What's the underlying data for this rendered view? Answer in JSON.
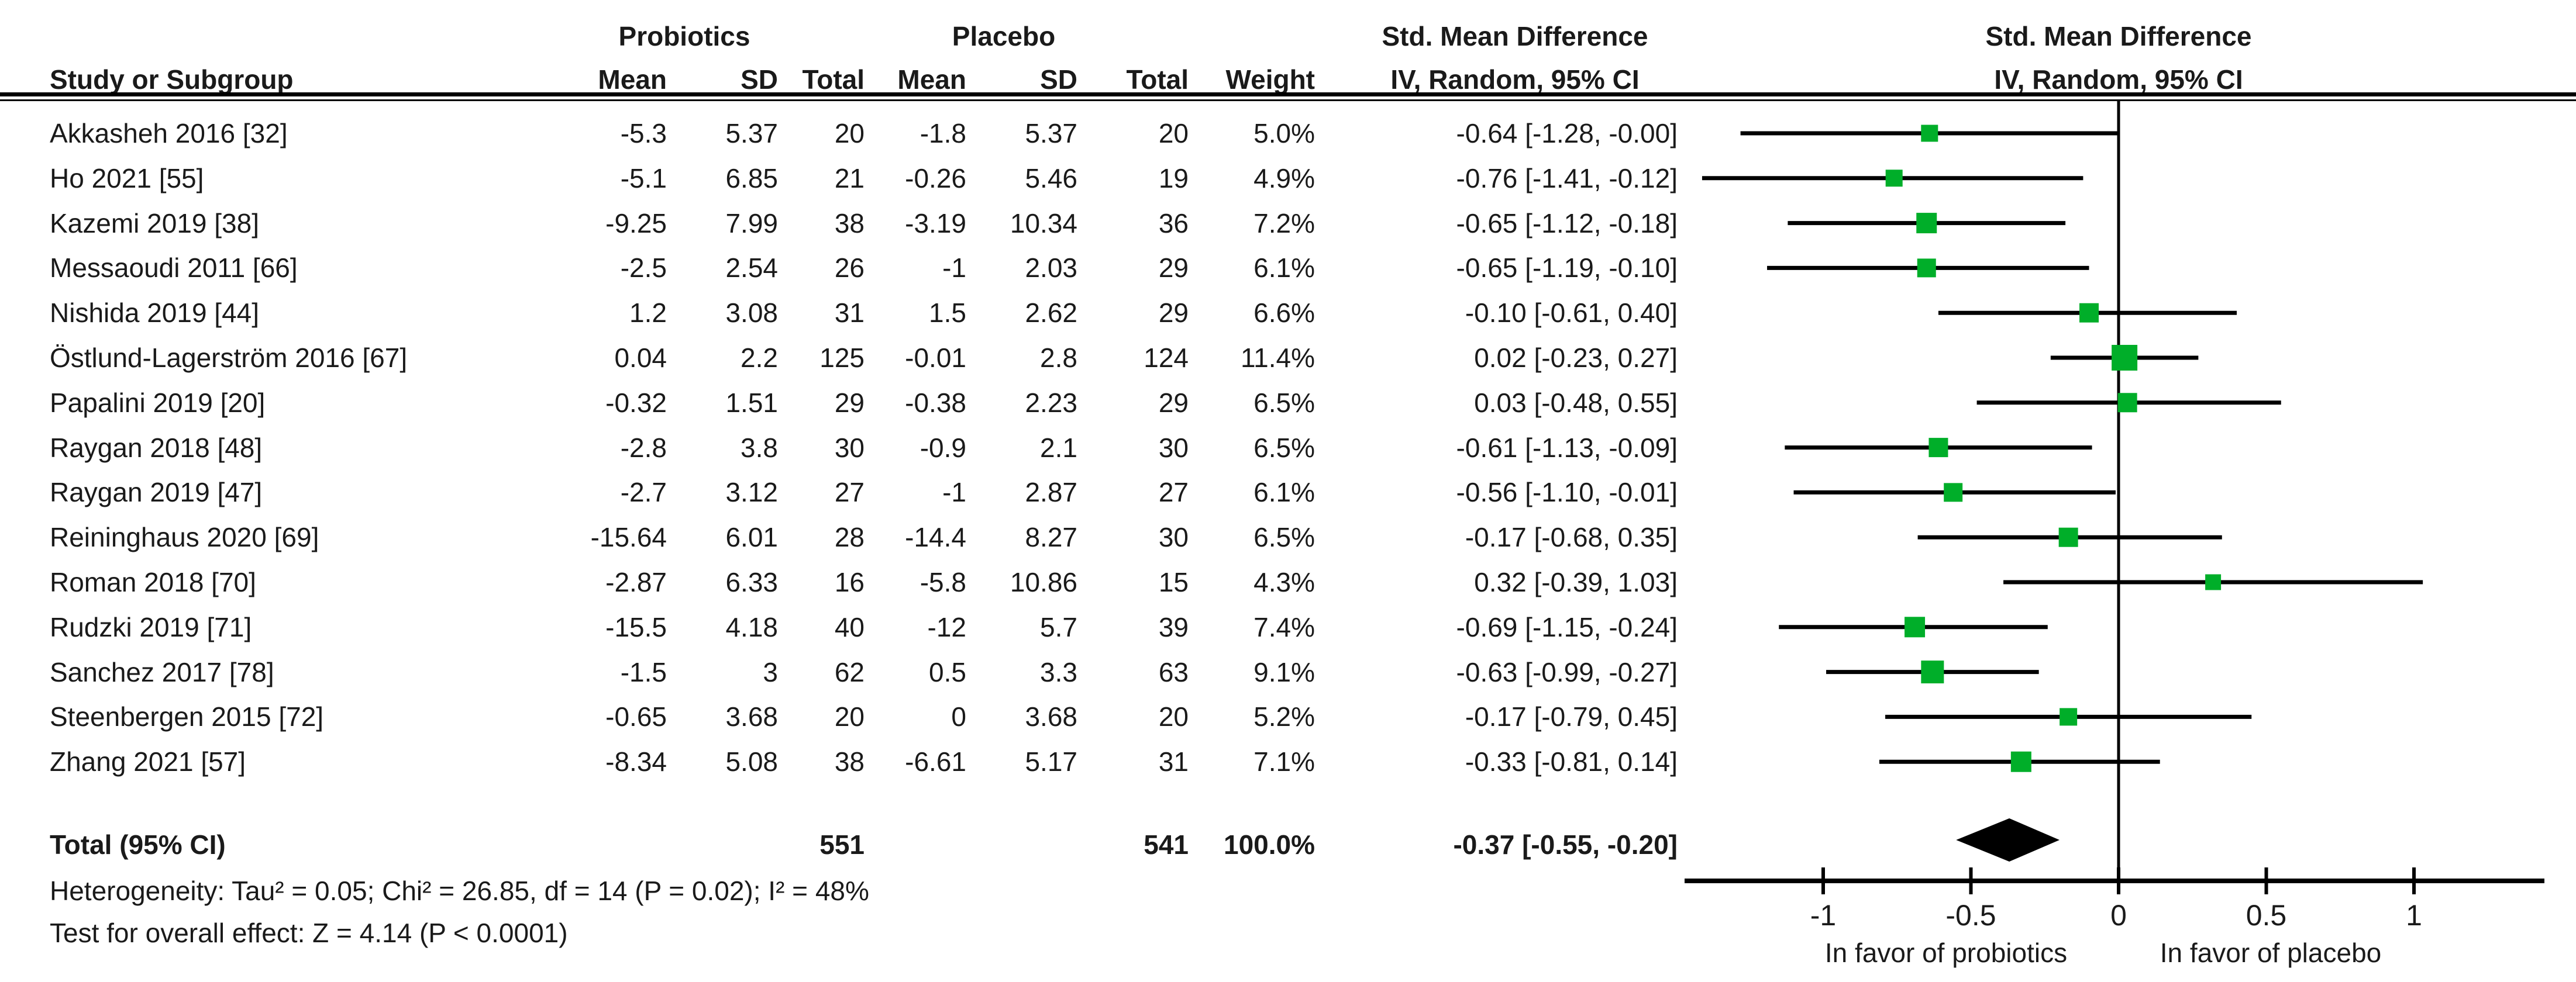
{
  "header": {
    "group_probiotics": "Probiotics",
    "group_placebo": "Placebo",
    "smd_text_col": "Std. Mean Difference",
    "smd_plot_col": "Std. Mean Difference",
    "iv_text_col": "IV, Random, 95% CI",
    "iv_plot_col": "IV, Random, 95% CI",
    "study_col": "Study or Subgroup",
    "mean_col": "Mean",
    "sd_col": "SD",
    "total_col": "Total",
    "weight_col": "Weight"
  },
  "studies": [
    {
      "name": "Akkasheh 2016 [32]",
      "p_mean": "-5.3",
      "p_sd": "5.37",
      "p_total": "20",
      "c_mean": "-1.8",
      "c_sd": "5.37",
      "c_total": "20",
      "weight": "5.0%",
      "ci_text": "-0.64 [-1.28, -0.00]",
      "est": -0.64,
      "lo": -1.28,
      "hi": 0.0,
      "weight_val": 5.0
    },
    {
      "name": "Ho 2021 [55]",
      "p_mean": "-5.1",
      "p_sd": "6.85",
      "p_total": "21",
      "c_mean": "-0.26",
      "c_sd": "5.46",
      "c_total": "19",
      "weight": "4.9%",
      "ci_text": "-0.76 [-1.41, -0.12]",
      "est": -0.76,
      "lo": -1.41,
      "hi": -0.12,
      "weight_val": 4.9
    },
    {
      "name": "Kazemi 2019 [38]",
      "p_mean": "-9.25",
      "p_sd": "7.99",
      "p_total": "38",
      "c_mean": "-3.19",
      "c_sd": "10.34",
      "c_total": "36",
      "weight": "7.2%",
      "ci_text": "-0.65 [-1.12, -0.18]",
      "est": -0.65,
      "lo": -1.12,
      "hi": -0.18,
      "weight_val": 7.2
    },
    {
      "name": "Messaoudi 2011 [66]",
      "p_mean": "-2.5",
      "p_sd": "2.54",
      "p_total": "26",
      "c_mean": "-1",
      "c_sd": "2.03",
      "c_total": "29",
      "weight": "6.1%",
      "ci_text": "-0.65 [-1.19, -0.10]",
      "est": -0.65,
      "lo": -1.19,
      "hi": -0.1,
      "weight_val": 6.1
    },
    {
      "name": "Nishida 2019 [44]",
      "p_mean": "1.2",
      "p_sd": "3.08",
      "p_total": "31",
      "c_mean": "1.5",
      "c_sd": "2.62",
      "c_total": "29",
      "weight": "6.6%",
      "ci_text": "-0.10 [-0.61, 0.40]",
      "est": -0.1,
      "lo": -0.61,
      "hi": 0.4,
      "weight_val": 6.6
    },
    {
      "name": "Östlund-Lagerström 2016 [67]",
      "p_mean": "0.04",
      "p_sd": "2.2",
      "p_total": "125",
      "c_mean": "-0.01",
      "c_sd": "2.8",
      "c_total": "124",
      "weight": "11.4%",
      "ci_text": "0.02 [-0.23, 0.27]",
      "est": 0.02,
      "lo": -0.23,
      "hi": 0.27,
      "weight_val": 11.4
    },
    {
      "name": "Papalini 2019 [20]",
      "p_mean": "-0.32",
      "p_sd": "1.51",
      "p_total": "29",
      "c_mean": "-0.38",
      "c_sd": "2.23",
      "c_total": "29",
      "weight": "6.5%",
      "ci_text": "0.03 [-0.48, 0.55]",
      "est": 0.03,
      "lo": -0.48,
      "hi": 0.55,
      "weight_val": 6.5
    },
    {
      "name": "Raygan 2018 [48]",
      "p_mean": "-2.8",
      "p_sd": "3.8",
      "p_total": "30",
      "c_mean": "-0.9",
      "c_sd": "2.1",
      "c_total": "30",
      "weight": "6.5%",
      "ci_text": "-0.61 [-1.13, -0.09]",
      "est": -0.61,
      "lo": -1.13,
      "hi": -0.09,
      "weight_val": 6.5
    },
    {
      "name": "Raygan 2019 [47]",
      "p_mean": "-2.7",
      "p_sd": "3.12",
      "p_total": "27",
      "c_mean": "-1",
      "c_sd": "2.87",
      "c_total": "27",
      "weight": "6.1%",
      "ci_text": "-0.56 [-1.10, -0.01]",
      "est": -0.56,
      "lo": -1.1,
      "hi": -0.01,
      "weight_val": 6.1
    },
    {
      "name": "Reininghaus 2020 [69]",
      "p_mean": "-15.64",
      "p_sd": "6.01",
      "p_total": "28",
      "c_mean": "-14.4",
      "c_sd": "8.27",
      "c_total": "30",
      "weight": "6.5%",
      "ci_text": "-0.17 [-0.68, 0.35]",
      "est": -0.17,
      "lo": -0.68,
      "hi": 0.35,
      "weight_val": 6.5
    },
    {
      "name": "Roman 2018 [70]",
      "p_mean": "-2.87",
      "p_sd": "6.33",
      "p_total": "16",
      "c_mean": "-5.8",
      "c_sd": "10.86",
      "c_total": "15",
      "weight": "4.3%",
      "ci_text": "0.32 [-0.39, 1.03]",
      "est": 0.32,
      "lo": -0.39,
      "hi": 1.03,
      "weight_val": 4.3
    },
    {
      "name": "Rudzki 2019 [71]",
      "p_mean": "-15.5",
      "p_sd": "4.18",
      "p_total": "40",
      "c_mean": "-12",
      "c_sd": "5.7",
      "c_total": "39",
      "weight": "7.4%",
      "ci_text": "-0.69 [-1.15, -0.24]",
      "est": -0.69,
      "lo": -1.15,
      "hi": -0.24,
      "weight_val": 7.4
    },
    {
      "name": "Sanchez 2017 [78]",
      "p_mean": "-1.5",
      "p_sd": "3",
      "p_total": "62",
      "c_mean": "0.5",
      "c_sd": "3.3",
      "c_total": "63",
      "weight": "9.1%",
      "ci_text": "-0.63 [-0.99, -0.27]",
      "est": -0.63,
      "lo": -0.99,
      "hi": -0.27,
      "weight_val": 9.1
    },
    {
      "name": "Steenbergen 2015 [72]",
      "p_mean": "-0.65",
      "p_sd": "3.68",
      "p_total": "20",
      "c_mean": "0",
      "c_sd": "3.68",
      "c_total": "20",
      "weight": "5.2%",
      "ci_text": "-0.17 [-0.79, 0.45]",
      "est": -0.17,
      "lo": -0.79,
      "hi": 0.45,
      "weight_val": 5.2
    },
    {
      "name": "Zhang 2021 [57]",
      "p_mean": "-8.34",
      "p_sd": "5.08",
      "p_total": "38",
      "c_mean": "-6.61",
      "c_sd": "5.17",
      "c_total": "31",
      "weight": "7.1%",
      "ci_text": "-0.33 [-0.81, 0.14]",
      "est": -0.33,
      "lo": -0.81,
      "hi": 0.14,
      "weight_val": 7.1
    }
  ],
  "total_row": {
    "label": "Total (95% CI)",
    "p_total": "551",
    "c_total": "541",
    "weight": "100.0%",
    "ci_text": "-0.37 [-0.55, -0.20]",
    "est": -0.37,
    "lo": -0.55,
    "hi": -0.2
  },
  "footer": {
    "heterogeneity": "Heterogeneity: Tau² = 0.05; Chi² = 26.85, df = 14 (P = 0.02); I² = 48%",
    "overall_effect": "Test for overall effect: Z = 4.14 (P < 0.0001)"
  },
  "axis": {
    "ticks": [
      -1,
      -0.5,
      0,
      0.5,
      1
    ],
    "tick_labels": [
      "-1",
      "-0.5",
      "0",
      "0.5",
      "1"
    ],
    "left_label": "In favor of probiotics",
    "right_label": "In favor of placebo"
  },
  "colors": {
    "marker_green": "#00ae29",
    "line_black": "#000000",
    "text": "#1a1a1a"
  },
  "chart_data": {
    "type": "scatter",
    "subtype": "forest-plot",
    "title": "Std. Mean Difference, IV, Random, 95% CI",
    "xlabel_left": "In favor of probiotics",
    "xlabel_right": "In favor of placebo",
    "xlim": [
      -1.47,
      1.45
    ],
    "x_ticks": [
      -1,
      -0.5,
      0,
      0.5,
      1
    ],
    "grid": false,
    "studies": [
      "Akkasheh 2016 [32]",
      "Ho 2021 [55]",
      "Kazemi 2019 [38]",
      "Messaoudi 2011 [66]",
      "Nishida 2019 [44]",
      "Östlund-Lagerström 2016 [67]",
      "Papalini 2019 [20]",
      "Raygan 2018 [48]",
      "Raygan 2019 [47]",
      "Reininghaus 2020 [69]",
      "Roman 2018 [70]",
      "Rudzki 2019 [71]",
      "Sanchez 2017 [78]",
      "Steenbergen 2015 [72]",
      "Zhang 2021 [57]"
    ],
    "estimates": [
      -0.64,
      -0.76,
      -0.65,
      -0.65,
      -0.1,
      0.02,
      0.03,
      -0.61,
      -0.56,
      -0.17,
      0.32,
      -0.69,
      -0.63,
      -0.17,
      -0.33
    ],
    "ci_low": [
      -1.28,
      -1.41,
      -1.12,
      -1.19,
      -0.61,
      -0.23,
      -0.48,
      -1.13,
      -1.1,
      -0.68,
      -0.39,
      -1.15,
      -0.99,
      -0.79,
      -0.81
    ],
    "ci_high": [
      0.0,
      -0.12,
      -0.18,
      -0.1,
      0.4,
      0.27,
      0.55,
      -0.09,
      -0.01,
      0.35,
      1.03,
      -0.24,
      -0.27,
      0.45,
      0.14
    ],
    "weights_pct": [
      5.0,
      4.9,
      7.2,
      6.1,
      6.6,
      11.4,
      6.5,
      6.5,
      6.1,
      6.5,
      4.3,
      7.4,
      9.1,
      5.2,
      7.1
    ],
    "pooled": {
      "label": "Total (95% CI)",
      "estimate": -0.37,
      "ci_low": -0.55,
      "ci_high": -0.2,
      "weight_pct": 100.0
    }
  }
}
